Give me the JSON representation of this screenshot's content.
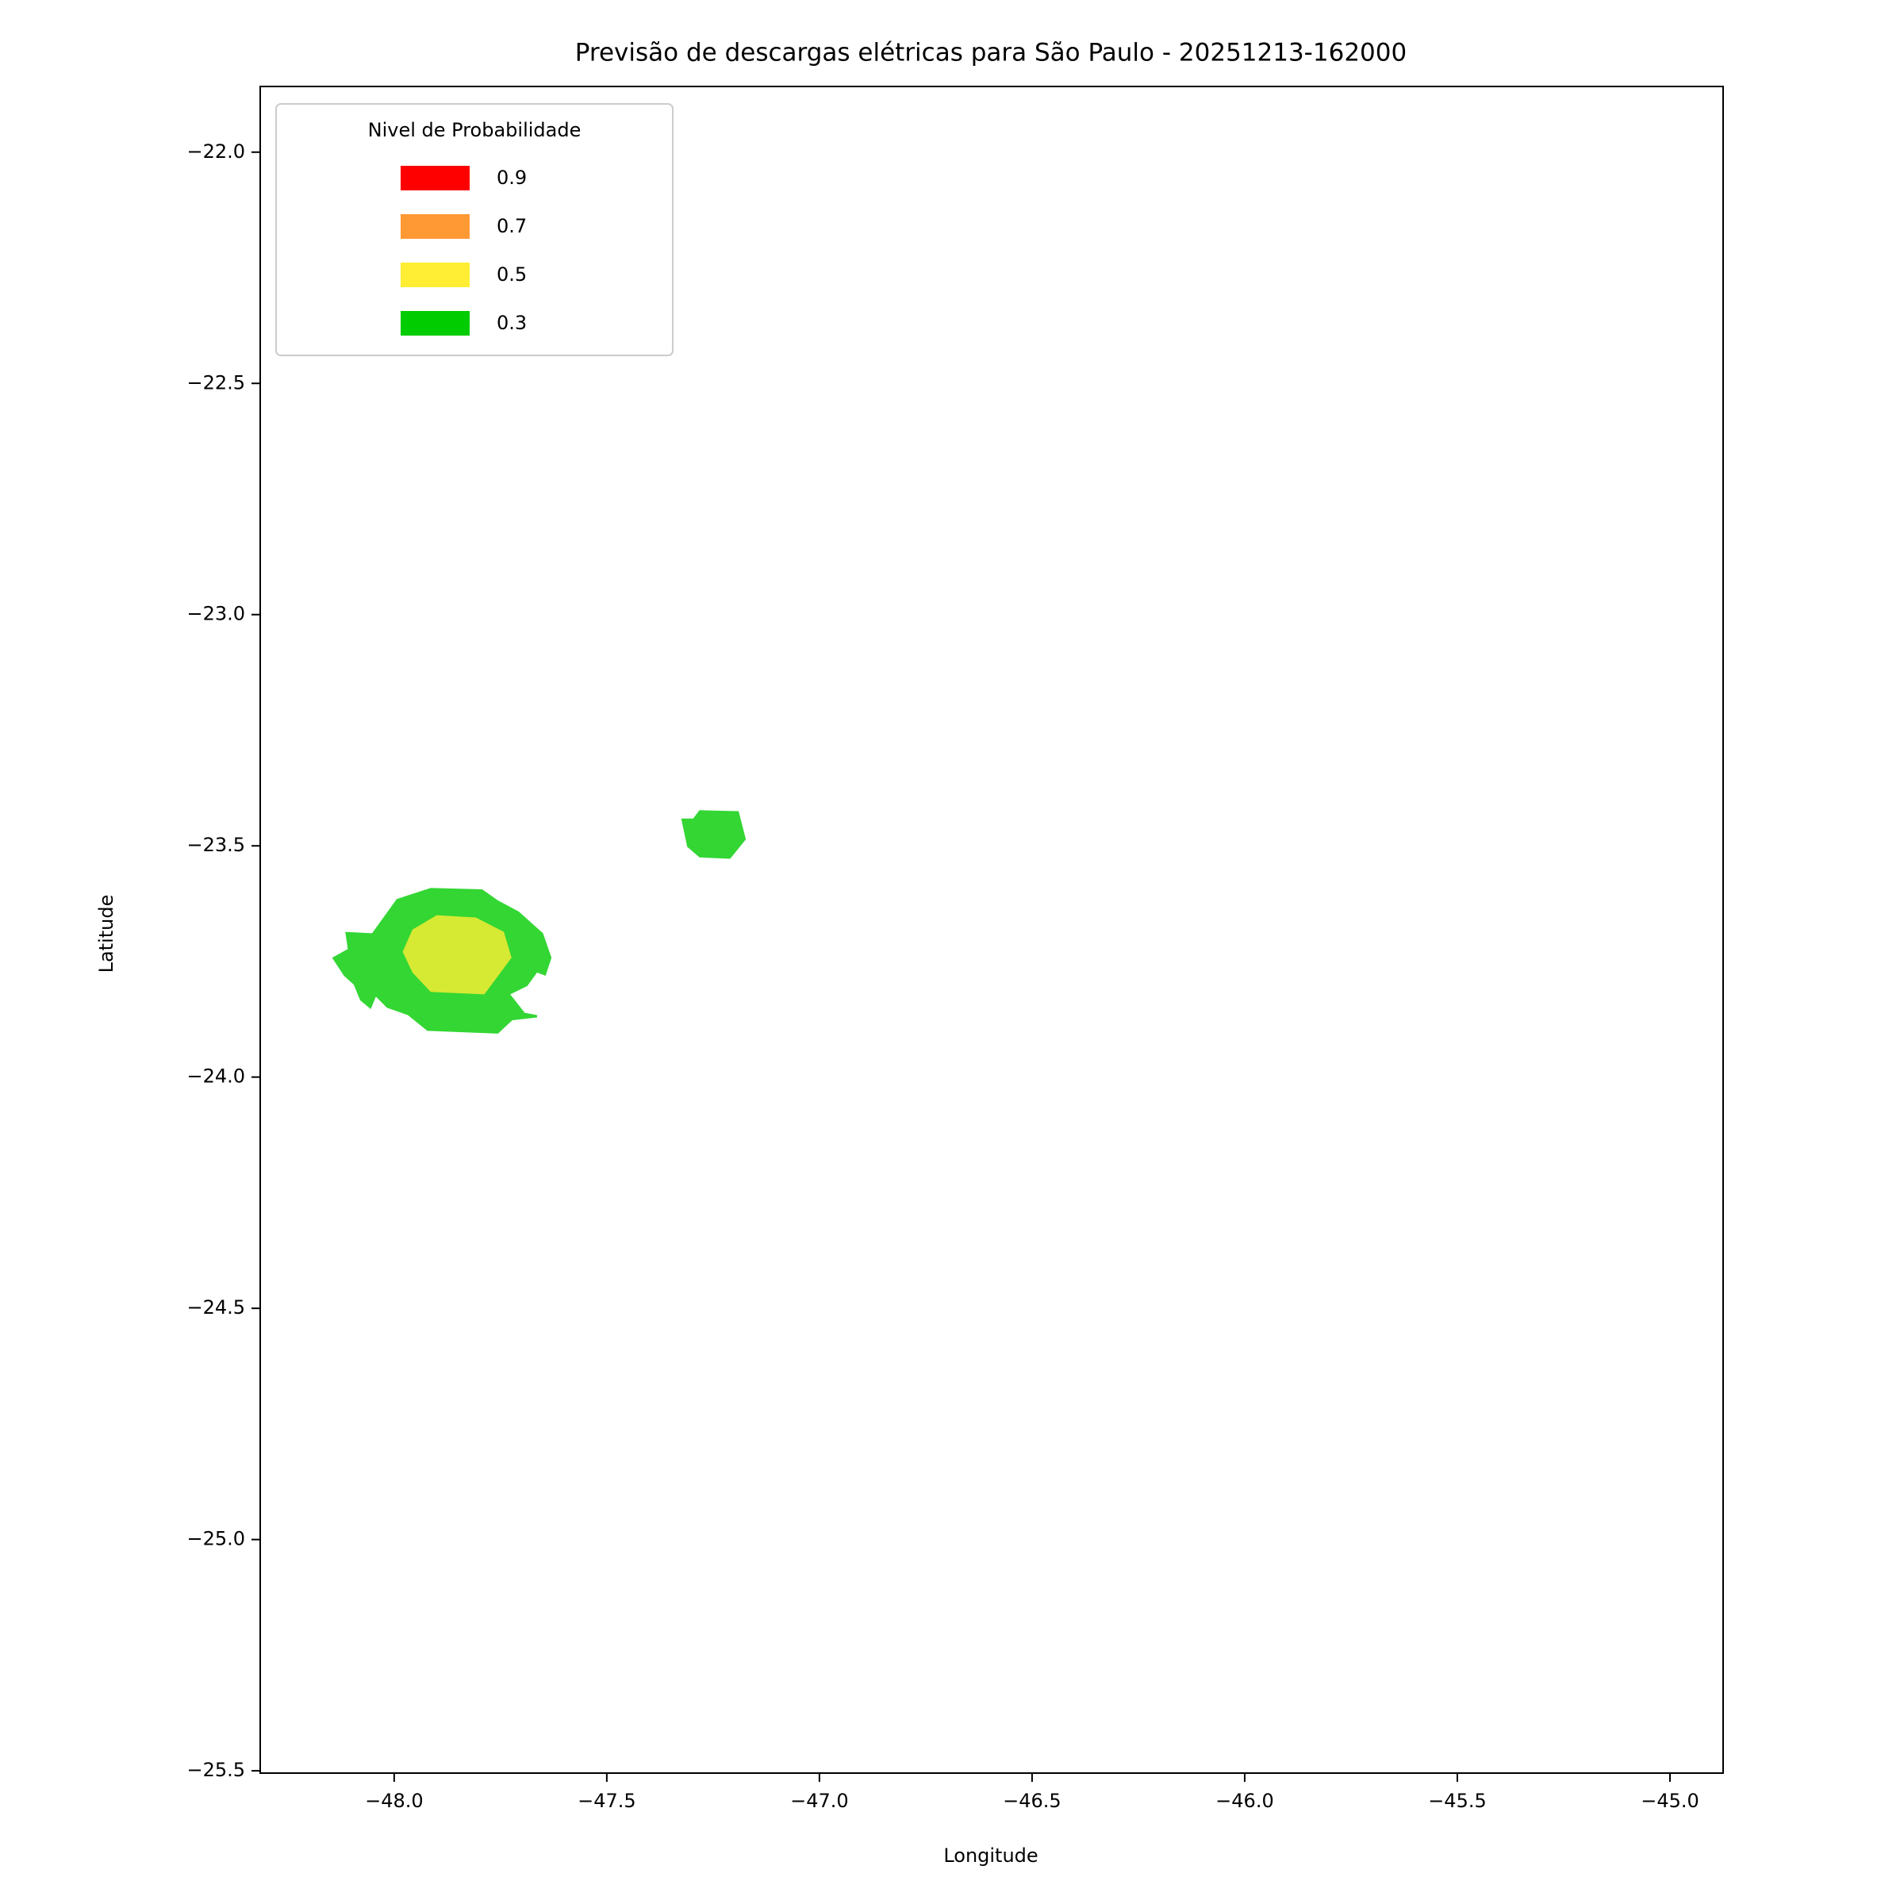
{
  "chart_data": {
    "type": "contour",
    "title": "Previsão de descargas elétricas para São Paulo - 20251213-162000",
    "x_label": "Longitude",
    "y_label": "Latitude",
    "xlim": [
      -48.315,
      -44.875
    ],
    "ylim": [
      -25.505,
      -21.858
    ],
    "xticks": [
      {
        "value": -48.0,
        "label": "−48.0"
      },
      {
        "value": -47.5,
        "label": "−47.5"
      },
      {
        "value": -47.0,
        "label": "−47.0"
      },
      {
        "value": -46.5,
        "label": "−46.5"
      },
      {
        "value": -46.0,
        "label": "−46.0"
      },
      {
        "value": -45.5,
        "label": "−45.5"
      },
      {
        "value": -45.0,
        "label": "−45.0"
      }
    ],
    "yticks": [
      {
        "value": -22.0,
        "label": "−22.0"
      },
      {
        "value": -22.5,
        "label": "−22.5"
      },
      {
        "value": -23.0,
        "label": "−23.0"
      },
      {
        "value": -23.5,
        "label": "−23.5"
      },
      {
        "value": -24.0,
        "label": "−24.0"
      },
      {
        "value": -24.5,
        "label": "−24.5"
      },
      {
        "value": -25.0,
        "label": "−25.0"
      },
      {
        "value": -25.5,
        "label": "−25.5"
      }
    ],
    "legend": {
      "title": "Nivel de Probabilidade",
      "corner": "upper left"
    },
    "alpha": 0.8,
    "series": [
      {
        "name": "0.9",
        "color": "#ff0000",
        "shapes": []
      },
      {
        "name": "0.7",
        "color": "#ff9933",
        "shapes": []
      },
      {
        "name": "0.5",
        "color": "#ffee33",
        "shapes": [
          {
            "x": [
              -47.957,
              -47.9,
              -47.808,
              -47.742,
              -47.724,
              -47.788,
              -47.914,
              -47.957,
              -47.98
            ],
            "y": [
              -23.681,
              -23.65,
              -23.655,
              -23.686,
              -23.742,
              -23.821,
              -23.816,
              -23.774,
              -23.729
            ]
          }
        ]
      },
      {
        "name": "0.3",
        "color": "#00cc00",
        "shapes": [
          {
            "x": [
              -48.115,
              -48.052,
              -47.994,
              -47.914,
              -47.793,
              -47.756,
              -47.707,
              -47.65,
              -47.63,
              -47.644,
              -47.664,
              -47.687,
              -47.727,
              -47.693,
              -47.664,
              -47.664,
              -47.722,
              -47.756,
              -47.922,
              -47.968,
              -48.017,
              -48.043,
              -48.055,
              -48.08,
              -48.095,
              -48.118,
              -48.146,
              -48.109
            ],
            "y": [
              -23.686,
              -23.689,
              -23.615,
              -23.591,
              -23.594,
              -23.618,
              -23.642,
              -23.689,
              -23.742,
              -23.781,
              -23.774,
              -23.803,
              -23.821,
              -23.861,
              -23.866,
              -23.871,
              -23.877,
              -23.906,
              -23.9,
              -23.866,
              -23.85,
              -23.826,
              -23.853,
              -23.834,
              -23.8,
              -23.781,
              -23.742,
              -23.723
            ]
          },
          {
            "x": [
              -47.325,
              -47.297,
              -47.282,
              -47.19,
              -47.173,
              -47.21,
              -47.282,
              -47.311
            ],
            "y": [
              -23.441,
              -23.441,
              -23.423,
              -23.425,
              -23.486,
              -23.528,
              -23.525,
              -23.502
            ]
          }
        ]
      }
    ]
  }
}
